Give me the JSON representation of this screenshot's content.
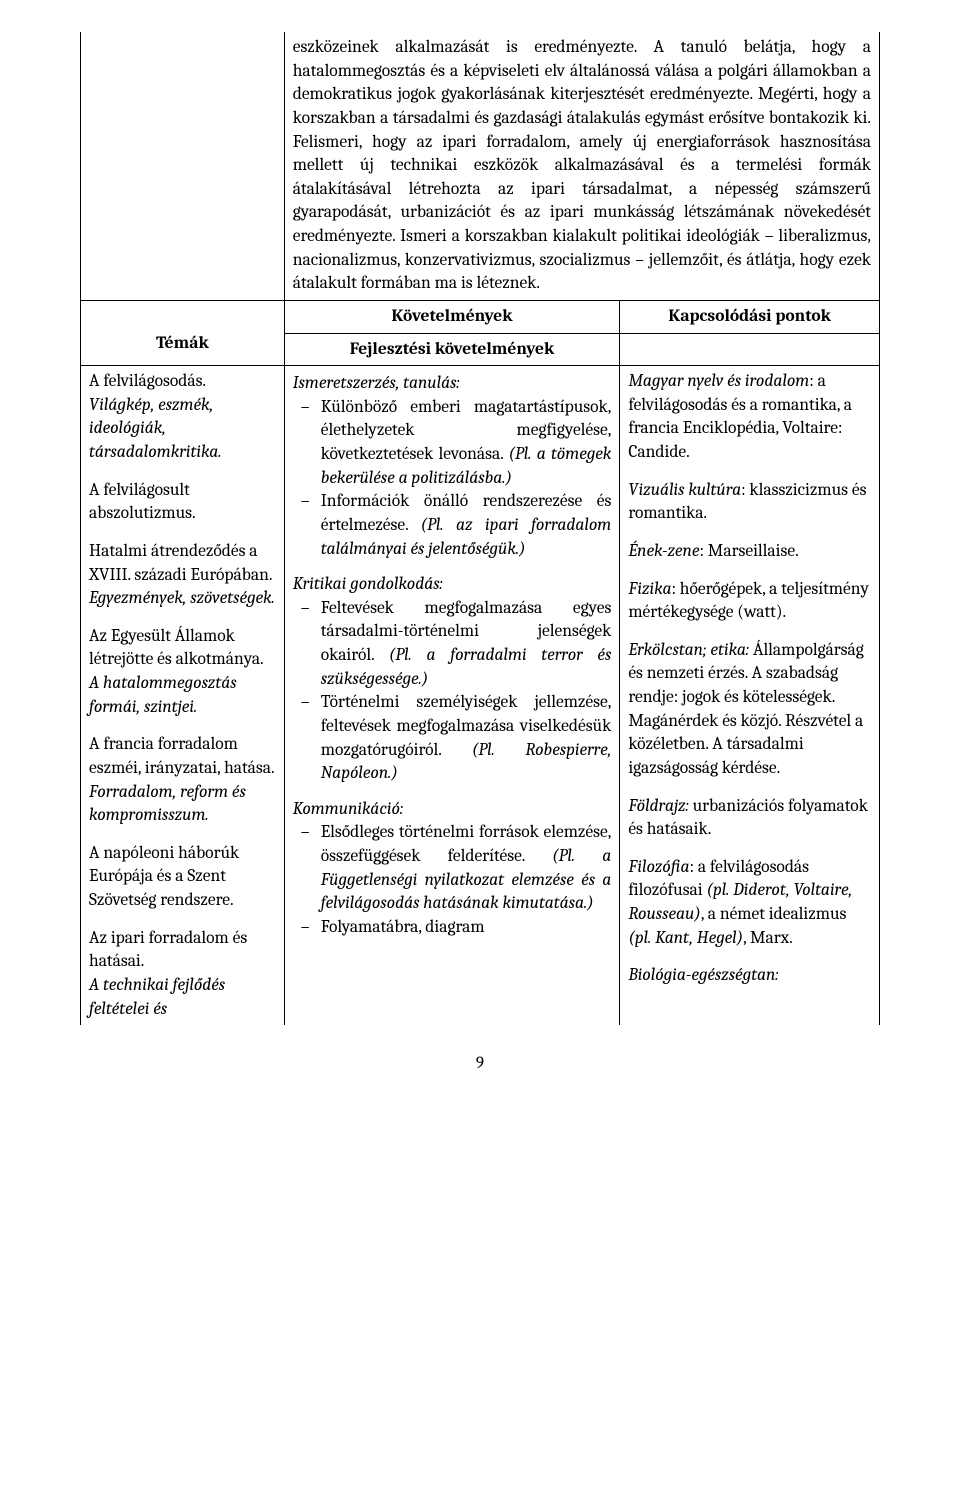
{
  "intro_text": "eszközeinek alkalmazását is eredményezte. A tanuló belátja, hogy a hatalommegosztás és a képviseleti elv általánossá válása a polgári államokban a demokratikus jogok gyakorlásának kiterjesztését eredményezte. Megérti, hogy a korszakban a társadalmi és gazdasági átalakulás egymást erősítve bontakozik ki. Felismeri, hogy az ipari forradalom, amely új energiaforrások hasznosítása mellett új technikai eszközök alkalmazásával és a termelési formák átalakításával létrehozta az ipari társadalmat, a népesség számszerű gyarapodását, urbanizációt és az ipari munkásság létszámának növekedését eredményezte. Ismeri a korszakban kialakult politikai ideológiák – liberalizmus, nacionalizmus, konzervativizmus, szocializmus – jellemzőit, és átlátja, hogy ezek átalakult formában ma is léteznek.",
  "headers": {
    "requirements": "Követelmények",
    "connections": "Kapcsolódási pontok",
    "topics": "Témák",
    "dev_requirements": "Fejlesztési követelmények"
  },
  "topics": [
    {
      "title": "A felvilágosodás.",
      "sub": "Világkép, eszmék, ideológiák, társadalomkritika."
    },
    {
      "title": "A felvilágosult abszolutizmus.",
      "sub": ""
    },
    {
      "title": "Hatalmi átrendeződés a XVIII. századi Európában.",
      "sub": "Egyezmények, szövetségek."
    },
    {
      "title": "Az Egyesült Államok létrejötte és alkotmánya.",
      "sub": "A hatalommegosztás formái, szintjei."
    },
    {
      "title": "A francia forradalom eszméi, irányzatai, hatása.",
      "sub": "Forradalom, reform és kompromisszum."
    },
    {
      "title": "A napóleoni háborúk Európája és a Szent Szövetség rendszere.",
      "sub": ""
    },
    {
      "title": "Az ipari forradalom és hatásai.",
      "sub": "A technikai fejlődés feltételei és"
    }
  ],
  "req_sections": [
    {
      "heading": "Ismeretszerzés, tanulás:",
      "items": [
        {
          "plain": "Különböző emberi magatartástípusok, élethelyzetek megfigyelése, következtetések levonása. ",
          "italic": "(Pl. a tömegek bekerülése a politizálásba.)"
        },
        {
          "plain": "Információk önálló rendszerezése és értelmezése. ",
          "italic": "(Pl. az ipari forradalom találmányai és jelentőségük.)"
        }
      ]
    },
    {
      "heading": "Kritikai gondolkodás:",
      "items": [
        {
          "plain": "Feltevések megfogalmazása egyes társadalmi-történelmi jelenségek okairól. ",
          "italic": "(Pl. a forradalmi terror és szükségessége.)"
        },
        {
          "plain": "Történelmi személyiségek jellemzése, feltevések megfogalmazása viselkedésük mozgatórugóiról. ",
          "italic": "(Pl. Robespierre, Napóleon.)"
        }
      ]
    },
    {
      "heading": "Kommunikáció:",
      "items": [
        {
          "plain": "Elsődleges történelmi források elemzése, összefüggések felderítése. ",
          "italic": "(Pl. a Függetlenségi nyilatkozat elemzése és a felvilágosodás hatásának kimutatása.)"
        },
        {
          "plain": "Folyamatábra, diagram",
          "italic": ""
        }
      ]
    }
  ],
  "connections": [
    {
      "label": "Magyar nyelv és irodalom",
      "text": ": a felvilágosodás és a romantika, a francia Enciklopédia, Voltaire: Candide."
    },
    {
      "label": "Vizuális kultúra",
      "text": ": klasszicizmus és romantika."
    },
    {
      "label": "Ének-zene",
      "text": ": Marseillaise."
    },
    {
      "label": "Fizika",
      "text": ": hőerőgépek, a teljesítmény mértékegysége (watt)."
    },
    {
      "label": "Erkölcstan; etika:",
      "text": " Állampolgárság és nemzeti érzés. A szabadság rendje: jogok és kötelességek. Magánérdek és közjó. Részvétel a közéletben. A társadalmi igazságosság kérdése.",
      "label_italic": true
    },
    {
      "label": "Földrajz:",
      "text": " urbanizációs folyamatok és hatásaik.",
      "label_italic": true
    },
    {
      "label": "Filozófia",
      "text_parts": [
        {
          "t": ": a felvilágosodás filozófusai ",
          "i": false
        },
        {
          "t": "(pl. Diderot, Voltaire, Rousseau)",
          "i": true
        },
        {
          "t": ", a német idealizmus ",
          "i": false
        },
        {
          "t": "(pl. Kant, Hegel)",
          "i": true
        },
        {
          "t": ", Marx.",
          "i": false
        }
      ]
    },
    {
      "label": "Biológia-egészségtan:",
      "text": "",
      "label_italic": true
    }
  ],
  "page_number": "9"
}
